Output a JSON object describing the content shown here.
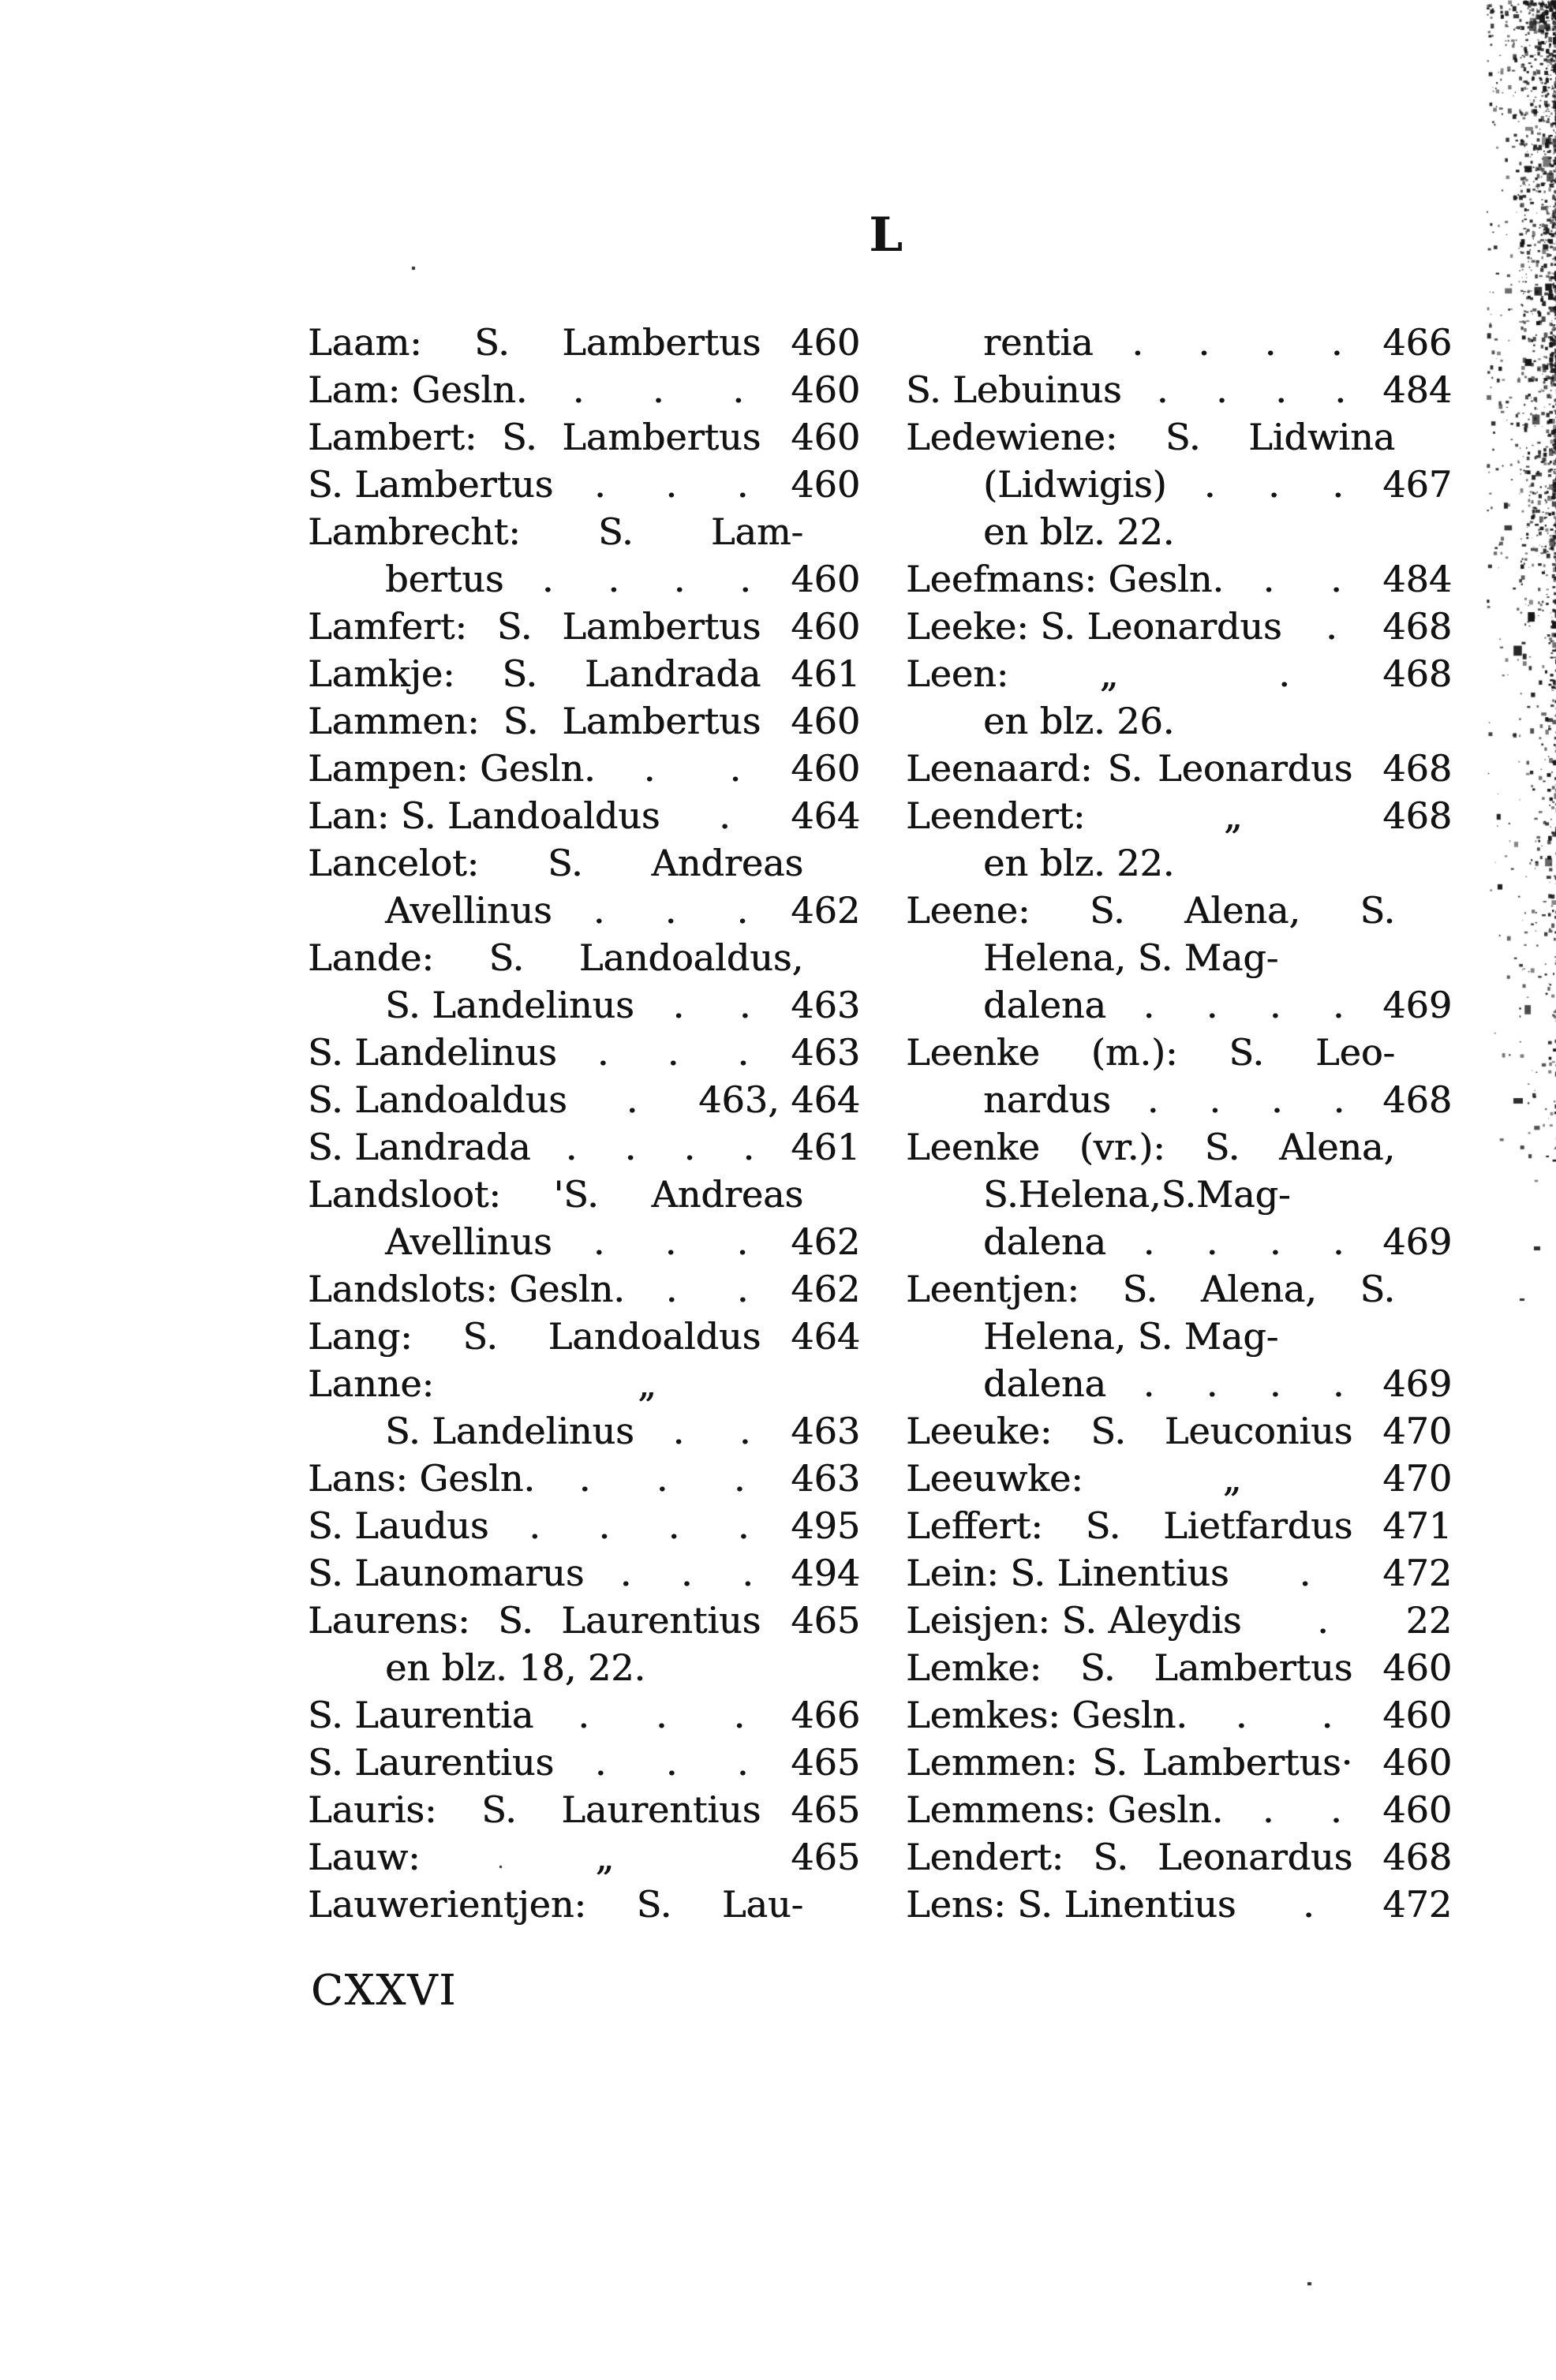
{
  "page": {
    "paper_color": "#ffffff",
    "ink_color": "#131313"
  },
  "header": {
    "letter": "L"
  },
  "footer": {
    "roman_page": "CXXVI"
  },
  "ditto_mark": "„",
  "index": {
    "columns": [
      {
        "side": "left",
        "lines": [
          {
            "t": "Laam: S. Lambertus",
            "j": true,
            "p": "460"
          },
          {
            "t": "Lam: Gesln.",
            "d": 3,
            "p": "460"
          },
          {
            "t": "Lambert: S. Lambertus",
            "j": true,
            "p": "460"
          },
          {
            "t": "S. Lambertus",
            "d": 3,
            "p": "460"
          },
          {
            "t": "Lambrecht: S. Lam-",
            "j": true
          },
          {
            "t": "bertus",
            "i": true,
            "d": 4,
            "p": "460"
          },
          {
            "t": "Lamfert: S. Lambertus",
            "j": true,
            "p": "460"
          },
          {
            "t": "Lamkje: S. Landrada",
            "j": true,
            "p": "461"
          },
          {
            "t": "Lammen: S. Lambertus",
            "j": true,
            "p": "460"
          },
          {
            "t": "Lampen: Gesln.",
            "d": 2,
            "p": "460"
          },
          {
            "t": "Lan: S. Landoaldus",
            "d": 1,
            "p": "464"
          },
          {
            "t": "Lancelot: S. Andreas",
            "j": true
          },
          {
            "t": "Avellinus",
            "i": true,
            "d": 3,
            "p": "462"
          },
          {
            "t": "Lande: S. Landoaldus,",
            "j": true
          },
          {
            "t": "S. Landelinus",
            "i": true,
            "d": 2,
            "p": "463"
          },
          {
            "t": "S. Landelinus",
            "d": 3,
            "p": "463"
          },
          {
            "t": "S. Landoaldus",
            "d": 1,
            "p": "463, 464"
          },
          {
            "t": "S. Landrada",
            "d": 4,
            "p": "461"
          },
          {
            "t": "Landsloot: 'S. Andreas",
            "j": true
          },
          {
            "t": "Avellinus",
            "i": true,
            "d": 3,
            "p": "462"
          },
          {
            "t": "Landslots: Gesln.",
            "d": 2,
            "p": "462"
          },
          {
            "t": "Lang: S. Landoaldus",
            "j": true,
            "p": "464"
          },
          {
            "t": "Lanne:",
            "q": true
          },
          {
            "t": "S. Landelinus",
            "i": true,
            "d": 2,
            "p": "463"
          },
          {
            "t": "Lans: Gesln.",
            "d": 3,
            "p": "463"
          },
          {
            "t": "S. Laudus",
            "d": 4,
            "p": "495"
          },
          {
            "t": "S. Launomarus",
            "d": 3,
            "p": "494"
          },
          {
            "t": "Laurens: S. Laurentius",
            "j": true,
            "p": "465"
          },
          {
            "t": "en blz. 18, 22.",
            "i": true
          },
          {
            "t": "S. Laurentia",
            "d": 3,
            "p": "466"
          },
          {
            "t": "S. Laurentius",
            "d": 3,
            "p": "465"
          },
          {
            "t": "Lauris: S. Laurentius",
            "j": true,
            "p": "465"
          },
          {
            "t": "Lauw:",
            "q": true,
            "p": "465"
          },
          {
            "t": "Lauwerientjen: S. Lau-",
            "j": true
          }
        ]
      },
      {
        "side": "right",
        "lines": [
          {
            "t": "rentia",
            "i": true,
            "d": 4,
            "p": "466"
          },
          {
            "t": "S. Lebuinus",
            "d": 4,
            "p": "484"
          },
          {
            "t": "Ledewiene: S. Lidwina",
            "j": true
          },
          {
            "t": "(Lidwigis)",
            "i": true,
            "d": 3,
            "p": "467"
          },
          {
            "t": "en blz. 22.",
            "i": true
          },
          {
            "t": "Leefmans: Gesln.",
            "d": 2,
            "p": "484"
          },
          {
            "t": "Leeke: S. Leonardus",
            "d": 1,
            "p": "468"
          },
          {
            "t": "Leen:",
            "q": true,
            "d": 1,
            "p": "468"
          },
          {
            "t": "en blz. 26.",
            "i": true
          },
          {
            "t": "Leenaard: S. Leonardus",
            "j": true,
            "p": "468"
          },
          {
            "t": "Leendert:",
            "q": true,
            "p": "468"
          },
          {
            "t": "en blz. 22.",
            "i": true
          },
          {
            "t": "Leene: S. Alena, S.",
            "j": true
          },
          {
            "t": "Helena, S. Mag-",
            "i": true
          },
          {
            "t": "dalena",
            "i": true,
            "d": 4,
            "p": "469"
          },
          {
            "t": "Leenke (m.): S. Leo-",
            "j": true
          },
          {
            "t": "nardus",
            "i": true,
            "d": 4,
            "p": "468"
          },
          {
            "t": "Leenke (vr.): S. Alena,",
            "j": true
          },
          {
            "t": "S.Helena,S.Mag-",
            "i": true
          },
          {
            "t": "dalena",
            "i": true,
            "d": 4,
            "p": "469"
          },
          {
            "t": "Leentjen: S. Alena, S.",
            "j": true
          },
          {
            "t": "Helena, S. Mag-",
            "i": true
          },
          {
            "t": "dalena",
            "i": true,
            "d": 4,
            "p": "469"
          },
          {
            "t": "Leeuke: S. Leuconius",
            "j": true,
            "p": "470"
          },
          {
            "t": "Leeuwke:",
            "q": true,
            "p": "470"
          },
          {
            "t": "Leffert: S. Lietfardus",
            "j": true,
            "p": "471"
          },
          {
            "t": "Lein: S. Linentius",
            "d": 1,
            "p": "472"
          },
          {
            "t": "Leisjen: S. Aleydis",
            "d": 1,
            "p": "22"
          },
          {
            "t": "Lemke: S. Lambertus",
            "j": true,
            "p": "460"
          },
          {
            "t": "Lemkes: Gesln.",
            "d": 2,
            "p": "460"
          },
          {
            "t": "Lemmen: S. Lambertus·",
            "j": true,
            "p": "460"
          },
          {
            "t": "Lemmens: Gesln.",
            "d": 2,
            "p": "460"
          },
          {
            "t": "Lendert: S. Leonardus",
            "j": true,
            "p": "468"
          },
          {
            "t": "Lens: S. Linentius",
            "d": 1,
            "p": "472"
          }
        ]
      }
    ]
  }
}
